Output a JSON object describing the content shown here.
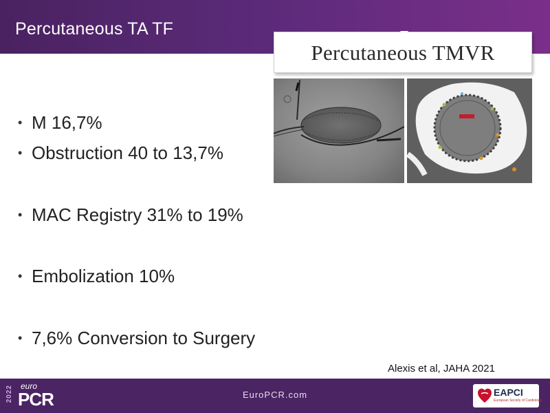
{
  "slide": {
    "title": "Percutaneous  TA TF",
    "figure": {
      "caption": "Percutaneous TMVR",
      "left_image": "fluoroscopy-valve-image",
      "right_image": "ct-valve-image"
    },
    "bullets": [
      "M  16,7%",
      "Obstruction 40 to 13,7%",
      "MAC Registry 31% to 19%",
      "Embolization 10%",
      "7,6% Conversion to Surgery"
    ],
    "citation": "Alexis et al, JAHA 2021"
  },
  "footer": {
    "logo": {
      "year": "2022",
      "euro": "euro",
      "pcr": "PCR"
    },
    "url": "EuroPCR.com",
    "badge": {
      "name": "EAPCI",
      "subtitle": "European Society of Cardiology"
    }
  },
  "colors": {
    "header_purple": "#5a2a78",
    "footer_purple": "#4b2463",
    "text": "#222222"
  }
}
